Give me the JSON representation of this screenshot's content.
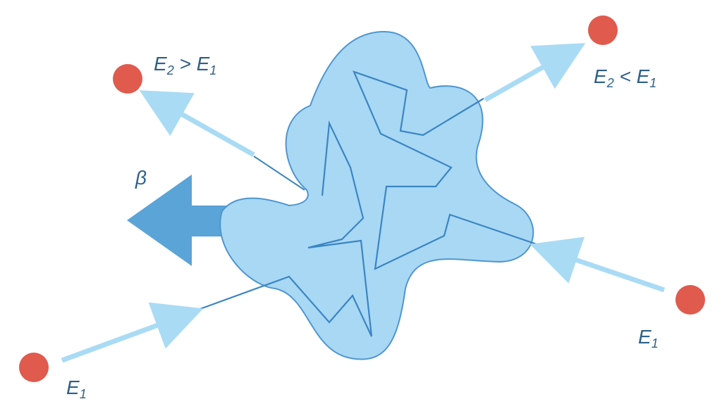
{
  "labels": {
    "beta": "β",
    "top_left": {
      "main": "E",
      "sub1": "2",
      "op": " > E",
      "sub2": "1"
    },
    "top_right": {
      "main": "E",
      "sub1": "2",
      "op": " < E",
      "sub2": "1"
    },
    "bottom_left": {
      "main": "E",
      "sub": "1"
    },
    "bottom_right": {
      "main": "E",
      "sub": "1"
    }
  },
  "colors": {
    "cloud_fill": "#a8d8f4",
    "cloud_stroke": "#4f96cf",
    "arrow_light": "#a9dbf5",
    "path_line": "#3b85c4",
    "beta_arrow": "#5aa4d8",
    "particle": "#e05a4e",
    "text": "#2e5f8a"
  }
}
